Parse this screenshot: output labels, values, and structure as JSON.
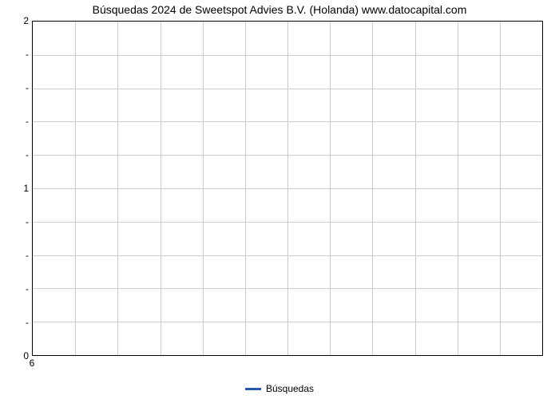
{
  "chart": {
    "type": "line",
    "title": "Búsquedas 2024 de Sweetspot Advies B.V. (Holanda) www.datocapital.com",
    "title_fontsize": 14,
    "title_color": "#000000",
    "background_color": "#ffffff",
    "border_color": "#000000",
    "grid_color": "#cccccc",
    "x": {
      "ticks": [
        6
      ],
      "tick_labels": [
        "6"
      ],
      "n_vgrid": 12
    },
    "y": {
      "lim": [
        0,
        2
      ],
      "major_ticks": [
        0,
        1,
        2
      ],
      "major_labels": [
        "0",
        "1",
        "2"
      ],
      "minor_per_major": 5,
      "minor_label": "-",
      "n_hgrid": 10
    },
    "series": [
      {
        "name": "Búsquedas",
        "color": "#2956b2",
        "line_width": 3,
        "x": [],
        "y": []
      }
    ],
    "legend": {
      "position": "bottom-center",
      "items": [
        {
          "label": "Búsquedas",
          "color": "#2956b2"
        }
      ]
    },
    "tick_fontsize": 12,
    "tick_color": "#000000"
  }
}
